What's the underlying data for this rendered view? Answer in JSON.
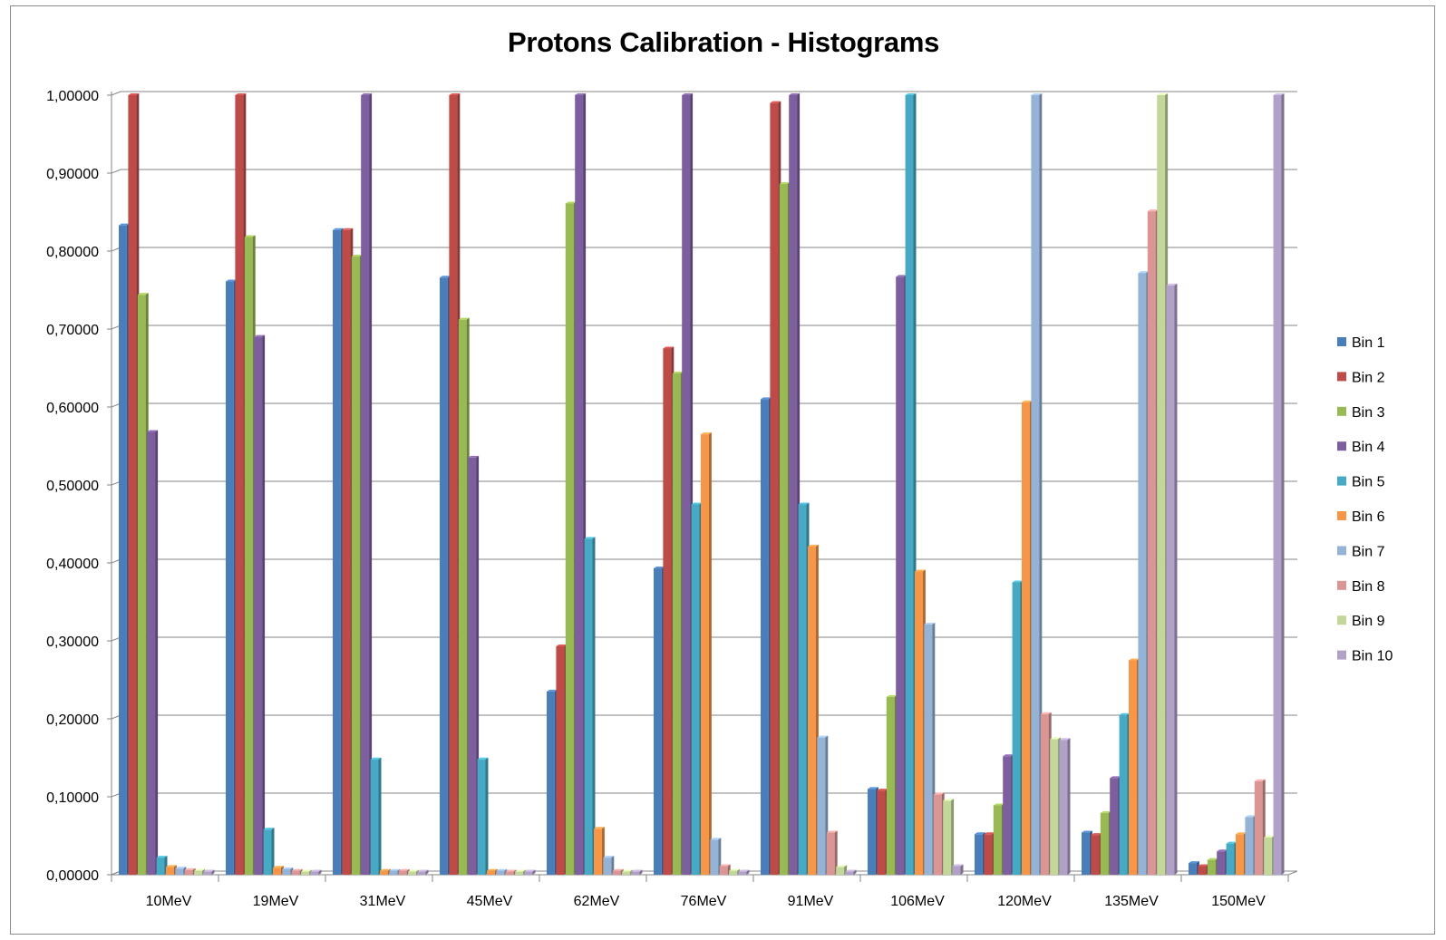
{
  "chart_data": {
    "type": "bar",
    "title": "Protons Calibration - Histograms",
    "xlabel": "",
    "ylabel": "",
    "ylim": [
      0,
      1
    ],
    "yticks": [
      "0,00000",
      "0,10000",
      "0,20000",
      "0,30000",
      "0,40000",
      "0,50000",
      "0,60000",
      "0,70000",
      "0,80000",
      "0,90000",
      "1,00000"
    ],
    "grid": true,
    "legend_position": "right",
    "categories": [
      "10MeV",
      "19MeV",
      "31MeV",
      "45MeV",
      "62MeV",
      "76MeV",
      "91MeV",
      "106MeV",
      "120MeV",
      "135MeV",
      "150MeV"
    ],
    "series": [
      {
        "name": "Bin 1",
        "color": "#4a7ebb",
        "values": [
          0.833,
          0.761,
          0.827,
          0.766,
          0.235,
          0.393,
          0.61,
          0.11,
          0.052,
          0.054,
          0.015
        ]
      },
      {
        "name": "Bin 2",
        "color": "#be4b48",
        "values": [
          1.0,
          1.0,
          0.827,
          1.0,
          0.293,
          0.675,
          0.99,
          0.108,
          0.052,
          0.051,
          0.011
        ]
      },
      {
        "name": "Bin 3",
        "color": "#98b954",
        "values": [
          0.744,
          0.818,
          0.793,
          0.712,
          0.861,
          0.643,
          0.886,
          0.228,
          0.089,
          0.079,
          0.019
        ]
      },
      {
        "name": "Bin 4",
        "color": "#7d5fa0",
        "values": [
          0.568,
          0.69,
          1.0,
          0.535,
          1.0,
          1.0,
          1.0,
          0.767,
          0.152,
          0.124,
          0.03
        ]
      },
      {
        "name": "Bin 5",
        "color": "#46aac5",
        "values": [
          0.022,
          0.058,
          0.148,
          0.148,
          0.431,
          0.475,
          0.475,
          1.0,
          0.375,
          0.205,
          0.04
        ]
      },
      {
        "name": "Bin 6",
        "color": "#f79646",
        "values": [
          0.01,
          0.009,
          0.005,
          0.005,
          0.059,
          0.565,
          0.421,
          0.389,
          0.606,
          0.275,
          0.052
        ]
      },
      {
        "name": "Bin 7",
        "color": "#95b3d7",
        "values": [
          0.008,
          0.007,
          0.005,
          0.005,
          0.022,
          0.045,
          0.176,
          0.321,
          1.0,
          0.772,
          0.074
        ]
      },
      {
        "name": "Bin 8",
        "color": "#da9694",
        "values": [
          0.006,
          0.005,
          0.005,
          0.004,
          0.005,
          0.011,
          0.054,
          0.103,
          0.206,
          0.851,
          0.12
        ]
      },
      {
        "name": "Bin 9",
        "color": "#c4d79b",
        "values": [
          0.005,
          0.004,
          0.004,
          0.004,
          0.004,
          0.005,
          0.01,
          0.095,
          0.174,
          1.0,
          0.048
        ]
      },
      {
        "name": "Bin 10",
        "color": "#b1a0c7",
        "values": [
          0.004,
          0.004,
          0.004,
          0.004,
          0.004,
          0.004,
          0.004,
          0.011,
          0.173,
          0.756,
          1.0
        ]
      }
    ]
  }
}
